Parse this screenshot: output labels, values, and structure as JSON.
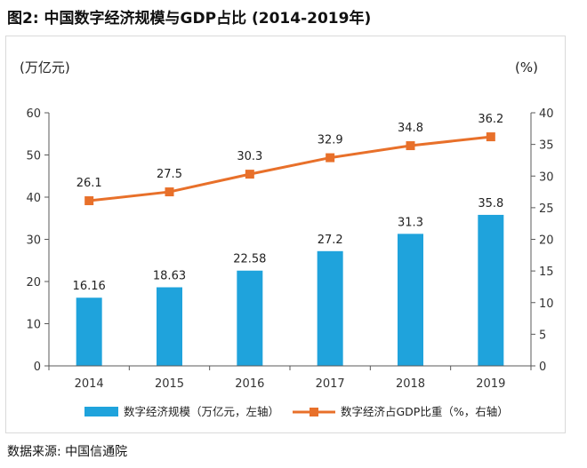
{
  "figure_title": "图2: 中国数字经济规模与GDP占比 (2014-2019年)",
  "source": "数据来源: 中国信通院",
  "chart_data": {
    "type": "bar+line",
    "categories": [
      "2014",
      "2015",
      "2016",
      "2017",
      "2018",
      "2019"
    ],
    "left_axis": {
      "label": "(万亿元)",
      "min": 0,
      "max": 60,
      "ticks": [
        0,
        10,
        20,
        30,
        40,
        50,
        60
      ]
    },
    "right_axis": {
      "label": "(%)",
      "min": 0,
      "max": 40,
      "ticks": [
        0,
        5,
        10,
        15,
        20,
        25,
        30,
        35,
        40
      ]
    },
    "series": [
      {
        "name": "数字经济规模（万亿元，左轴）",
        "type": "bar",
        "axis": "left",
        "color": "#1fa3dc",
        "values": [
          16.16,
          18.63,
          22.58,
          27.2,
          31.3,
          35.8
        ],
        "labels": [
          "16.16",
          "18.63",
          "22.58",
          "27.2",
          "31.3",
          "35.8"
        ]
      },
      {
        "name": "数字经济占GDP比重（%，右轴）",
        "type": "line",
        "axis": "right",
        "color": "#e8702a",
        "values": [
          26.1,
          27.5,
          30.3,
          32.9,
          34.8,
          36.2
        ],
        "labels": [
          "26.1",
          "27.5",
          "30.3",
          "32.9",
          "34.8",
          "36.2"
        ]
      }
    ],
    "legend_position": "bottom"
  }
}
